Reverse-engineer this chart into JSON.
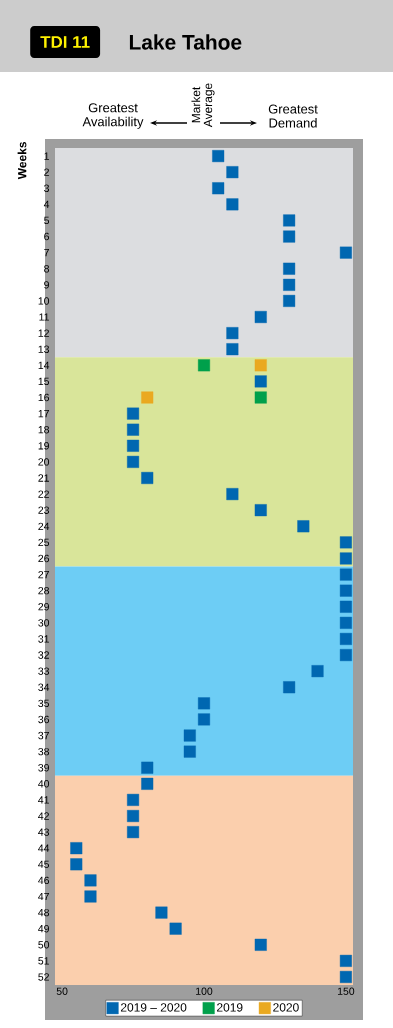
{
  "chart_data": {
    "type": "scatter",
    "title": "Lake Tahoe",
    "annotations": [
      "TDI 11",
      "Greatest Availability",
      "Market Average",
      "Greatest Demand"
    ],
    "ylabel": "Weeks",
    "xlim": [
      47.5,
      152.5
    ],
    "xticks": [
      50,
      100,
      150
    ],
    "ylim": [
      52.5,
      0.5
    ],
    "yticks": [
      1,
      2,
      3,
      4,
      5,
      6,
      7,
      8,
      9,
      10,
      11,
      12,
      13,
      14,
      15,
      16,
      17,
      18,
      19,
      20,
      21,
      22,
      23,
      24,
      25,
      26,
      27,
      28,
      29,
      30,
      31,
      32,
      33,
      34,
      35,
      36,
      37,
      38,
      39,
      40,
      41,
      42,
      43,
      44,
      45,
      46,
      47,
      48,
      49,
      50,
      51,
      52
    ],
    "marker": "square",
    "legend": "bottom",
    "bands": [
      {
        "axis": "y",
        "from": 0.5,
        "to": 13.5,
        "color": "#dcdde0"
      },
      {
        "axis": "y",
        "from": 13.5,
        "to": 26.5,
        "color": "#d9e59a"
      },
      {
        "axis": "y",
        "from": 26.5,
        "to": 39.5,
        "color": "#6dcdf5"
      },
      {
        "axis": "y",
        "from": 39.5,
        "to": 52.5,
        "color": "#fbcfad"
      }
    ],
    "series": [
      {
        "name": "2019 – 2020",
        "color": "#0067b1",
        "x": [
          105,
          110,
          105,
          110,
          130,
          130,
          150,
          130,
          130,
          130,
          120,
          110,
          110,
          120,
          75,
          75,
          75,
          75,
          80,
          110,
          120,
          135,
          150,
          150,
          150,
          150,
          150,
          150,
          150,
          150,
          140,
          130,
          100,
          100,
          95,
          95,
          80,
          80,
          75,
          75,
          75,
          55,
          55,
          60,
          60,
          85,
          90,
          120,
          150,
          150
        ],
        "values": [
          1,
          2,
          3,
          4,
          5,
          6,
          7,
          8,
          9,
          10,
          11,
          12,
          13,
          15,
          17,
          18,
          19,
          20,
          21,
          22,
          23,
          24,
          25,
          26,
          27,
          28,
          29,
          30,
          31,
          32,
          33,
          34,
          35,
          36,
          37,
          38,
          39,
          40,
          41,
          42,
          43,
          44,
          45,
          46,
          47,
          48,
          49,
          50,
          51,
          52
        ]
      },
      {
        "name": "2019",
        "color": "#00a04b",
        "x": [
          100,
          120
        ],
        "values": [
          14,
          16
        ]
      },
      {
        "name": "2020",
        "color": "#eaa920",
        "x": [
          120,
          80
        ],
        "values": [
          14,
          16
        ]
      }
    ]
  }
}
